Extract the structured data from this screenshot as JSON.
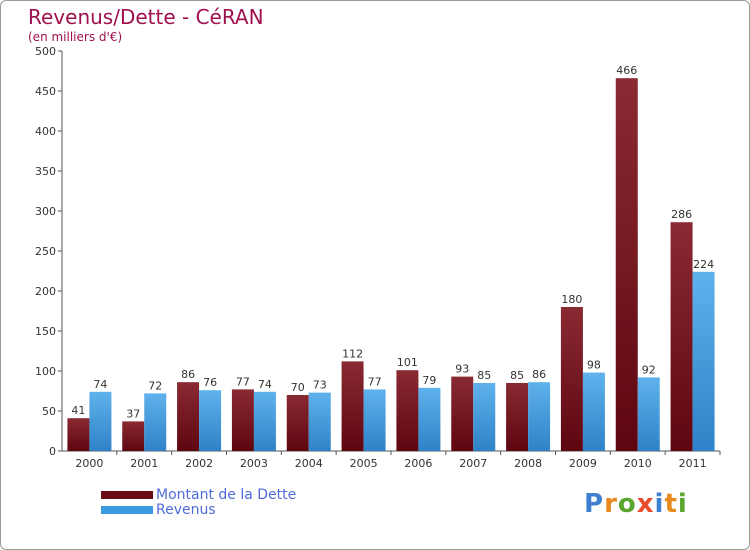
{
  "header": {
    "title": "Revenus/Dette - CéRAN",
    "subtitle": "(en milliers d'€)"
  },
  "legend": {
    "items": [
      {
        "label": "Montant de la Dette",
        "color": "#6b0a14"
      },
      {
        "label": "Revenus",
        "color": "#3d9be0"
      }
    ]
  },
  "logo": {
    "text": "Proxiti",
    "colors": [
      "#3f7fcf",
      "#e8891d",
      "#5aa62f",
      "#e84d2a",
      "#3f7fcf",
      "#e8891d",
      "#5aa62f"
    ]
  },
  "chart_data": {
    "type": "bar",
    "title": "Revenus/Dette - CéRAN",
    "subtitle": "(en milliers d'€)",
    "xlabel": "",
    "ylabel": "",
    "categories": [
      "2000",
      "2001",
      "2002",
      "2003",
      "2004",
      "2005",
      "2006",
      "2007",
      "2008",
      "2009",
      "2010",
      "2011"
    ],
    "series": [
      {
        "name": "Montant de la Dette",
        "color": "#6b0a14",
        "values": [
          41,
          37,
          86,
          77,
          70,
          112,
          101,
          93,
          85,
          180,
          466,
          286
        ]
      },
      {
        "name": "Revenus",
        "color": "#3d9be0",
        "values": [
          74,
          72,
          76,
          74,
          73,
          77,
          79,
          85,
          86,
          98,
          92,
          224
        ]
      }
    ],
    "ylim": [
      0,
      500
    ],
    "yticks": [
      0,
      50,
      100,
      150,
      200,
      250,
      300,
      350,
      400,
      450,
      500
    ],
    "grid": false,
    "legend_position": "bottom-left"
  }
}
